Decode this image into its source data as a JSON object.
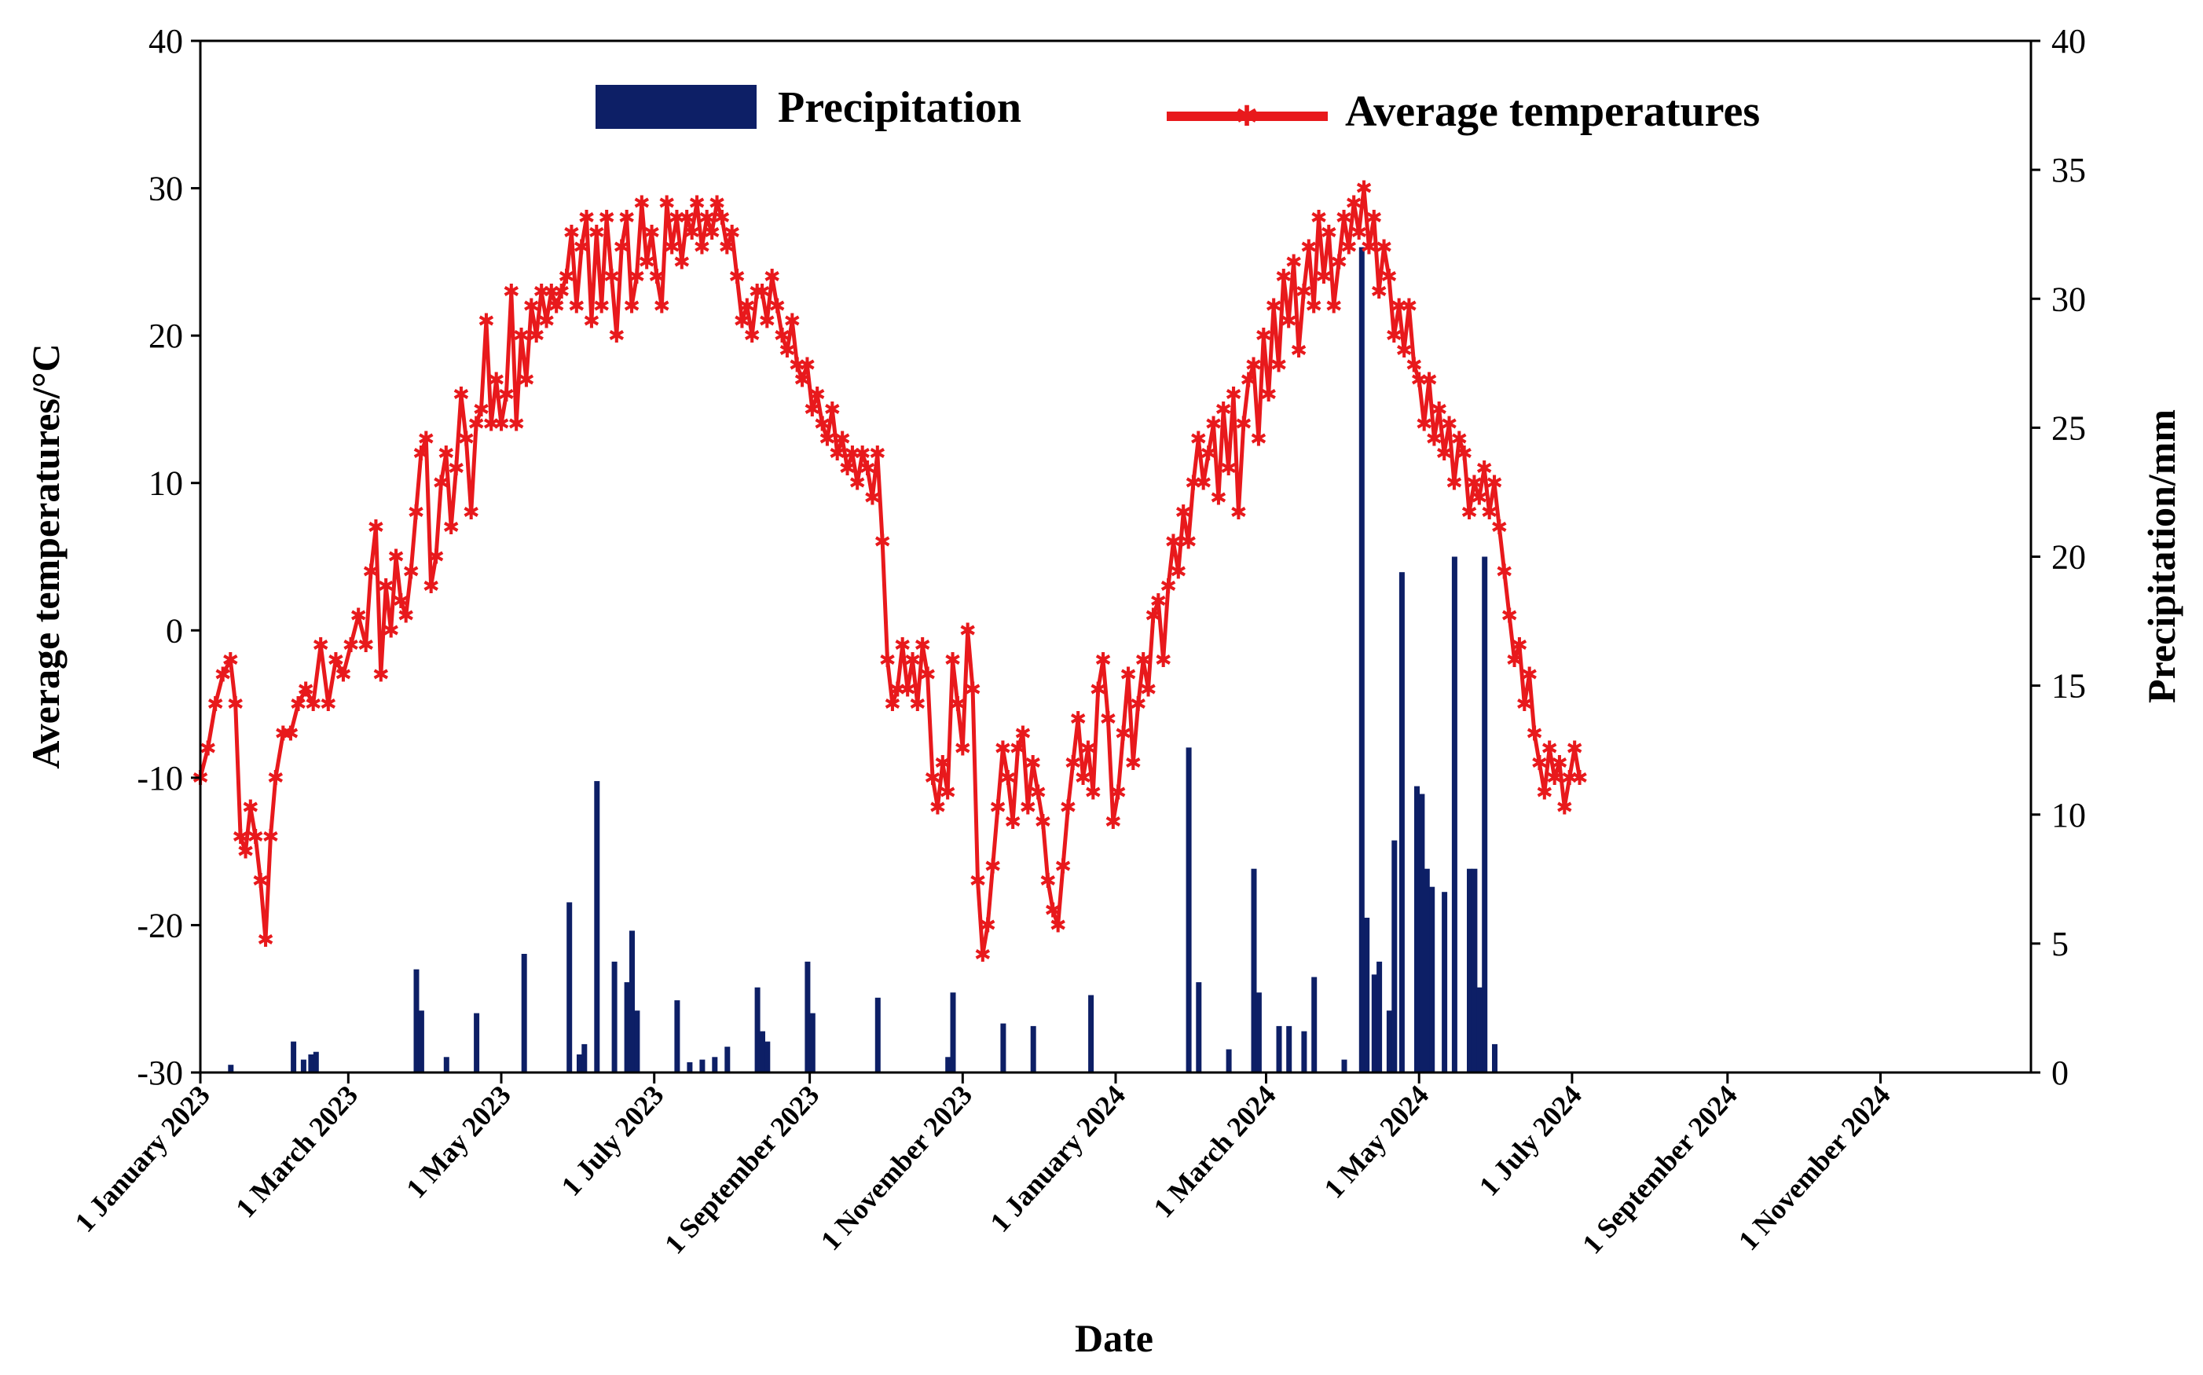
{
  "chart_data": {
    "type": "bar+line",
    "title": "",
    "xlabel": "Date",
    "ylabel_left": "Average temperatures/°C",
    "ylabel_right": "Precipitation/mm",
    "ylim_left": [
      -30,
      40
    ],
    "ylim_right": [
      0,
      40
    ],
    "yticks_left": [
      "-30",
      "-20",
      "-10",
      "0",
      "10",
      "20",
      "30",
      "40"
    ],
    "yticks_right": [
      "0",
      "5",
      "10",
      "15",
      "20",
      "25",
      "30",
      "35",
      "40"
    ],
    "x_range_days": [
      0,
      730
    ],
    "x_ticks": [
      {
        "day": 0,
        "label": "1 January 2023"
      },
      {
        "day": 59,
        "label": "1 March 2023"
      },
      {
        "day": 120,
        "label": "1 May 2023"
      },
      {
        "day": 181,
        "label": "1 July 2023"
      },
      {
        "day": 243,
        "label": "1 September 2023"
      },
      {
        "day": 304,
        "label": "1 November 2023"
      },
      {
        "day": 365,
        "label": "1 January 2024"
      },
      {
        "day": 425,
        "label": "1 March 2024"
      },
      {
        "day": 486,
        "label": "1 May 2024"
      },
      {
        "day": 547,
        "label": "1 July 2024"
      },
      {
        "day": 609,
        "label": "1 September 2024"
      },
      {
        "day": 670,
        "label": "1 November 2024"
      }
    ],
    "legend": {
      "position": "top-center",
      "precipitation": "Precipitation",
      "temperature": "Average temperatures"
    },
    "colors": {
      "precipitation": "#0d1f66",
      "temperature": "#e8191c"
    },
    "temperature_series": {
      "name": "Average temperatures",
      "points": [
        [
          0,
          -10
        ],
        [
          3,
          -8
        ],
        [
          6,
          -5
        ],
        [
          9,
          -3
        ],
        [
          12,
          -2
        ],
        [
          14,
          -5
        ],
        [
          16,
          -14
        ],
        [
          18,
          -15
        ],
        [
          20,
          -12
        ],
        [
          22,
          -14
        ],
        [
          24,
          -17
        ],
        [
          26,
          -21
        ],
        [
          28,
          -14
        ],
        [
          30,
          -10
        ],
        [
          33,
          -7
        ],
        [
          36,
          -7
        ],
        [
          39,
          -5
        ],
        [
          42,
          -4
        ],
        [
          45,
          -5
        ],
        [
          48,
          -1
        ],
        [
          51,
          -5
        ],
        [
          54,
          -2
        ],
        [
          57,
          -3
        ],
        [
          60,
          -1
        ],
        [
          63,
          1
        ],
        [
          66,
          -1
        ],
        [
          68,
          4
        ],
        [
          70,
          7
        ],
        [
          72,
          -3
        ],
        [
          74,
          3
        ],
        [
          76,
          0
        ],
        [
          78,
          5
        ],
        [
          80,
          2
        ],
        [
          82,
          1
        ],
        [
          84,
          4
        ],
        [
          86,
          8
        ],
        [
          88,
          12
        ],
        [
          90,
          13
        ],
        [
          92,
          3
        ],
        [
          94,
          5
        ],
        [
          96,
          10
        ],
        [
          98,
          12
        ],
        [
          100,
          7
        ],
        [
          102,
          11
        ],
        [
          104,
          16
        ],
        [
          106,
          13
        ],
        [
          108,
          8
        ],
        [
          110,
          14
        ],
        [
          112,
          15
        ],
        [
          114,
          21
        ],
        [
          116,
          14
        ],
        [
          118,
          17
        ],
        [
          120,
          14
        ],
        [
          122,
          16
        ],
        [
          124,
          23
        ],
        [
          126,
          14
        ],
        [
          128,
          20
        ],
        [
          130,
          17
        ],
        [
          132,
          22
        ],
        [
          134,
          20
        ],
        [
          136,
          23
        ],
        [
          138,
          21
        ],
        [
          140,
          23
        ],
        [
          142,
          22
        ],
        [
          144,
          23
        ],
        [
          146,
          24
        ],
        [
          148,
          27
        ],
        [
          150,
          22
        ],
        [
          152,
          26
        ],
        [
          154,
          28
        ],
        [
          156,
          21
        ],
        [
          158,
          27
        ],
        [
          160,
          22
        ],
        [
          162,
          28
        ],
        [
          164,
          24
        ],
        [
          166,
          20
        ],
        [
          168,
          26
        ],
        [
          170,
          28
        ],
        [
          172,
          22
        ],
        [
          174,
          24
        ],
        [
          176,
          29
        ],
        [
          178,
          25
        ],
        [
          180,
          27
        ],
        [
          182,
          24
        ],
        [
          184,
          22
        ],
        [
          186,
          29
        ],
        [
          188,
          26
        ],
        [
          190,
          28
        ],
        [
          192,
          25
        ],
        [
          194,
          28
        ],
        [
          196,
          27
        ],
        [
          198,
          29
        ],
        [
          200,
          26
        ],
        [
          202,
          28
        ],
        [
          204,
          27
        ],
        [
          206,
          29
        ],
        [
          208,
          28
        ],
        [
          210,
          26
        ],
        [
          212,
          27
        ],
        [
          214,
          24
        ],
        [
          216,
          21
        ],
        [
          218,
          22
        ],
        [
          220,
          20
        ],
        [
          222,
          23
        ],
        [
          224,
          23
        ],
        [
          226,
          21
        ],
        [
          228,
          24
        ],
        [
          230,
          22
        ],
        [
          232,
          20
        ],
        [
          234,
          19
        ],
        [
          236,
          21
        ],
        [
          238,
          18
        ],
        [
          240,
          17
        ],
        [
          242,
          18
        ],
        [
          244,
          15
        ],
        [
          246,
          16
        ],
        [
          248,
          14
        ],
        [
          250,
          13
        ],
        [
          252,
          15
        ],
        [
          254,
          12
        ],
        [
          256,
          13
        ],
        [
          258,
          11
        ],
        [
          260,
          12
        ],
        [
          262,
          10
        ],
        [
          264,
          12
        ],
        [
          266,
          11
        ],
        [
          268,
          9
        ],
        [
          270,
          12
        ],
        [
          272,
          6
        ],
        [
          274,
          -2
        ],
        [
          276,
          -5
        ],
        [
          278,
          -4
        ],
        [
          280,
          -1
        ],
        [
          282,
          -4
        ],
        [
          284,
          -2
        ],
        [
          286,
          -5
        ],
        [
          288,
          -1
        ],
        [
          290,
          -3
        ],
        [
          292,
          -10
        ],
        [
          294,
          -12
        ],
        [
          296,
          -9
        ],
        [
          298,
          -11
        ],
        [
          300,
          -2
        ],
        [
          302,
          -5
        ],
        [
          304,
          -8
        ],
        [
          306,
          0
        ],
        [
          308,
          -4
        ],
        [
          310,
          -17
        ],
        [
          312,
          -22
        ],
        [
          314,
          -20
        ],
        [
          316,
          -16
        ],
        [
          318,
          -12
        ],
        [
          320,
          -8
        ],
        [
          322,
          -10
        ],
        [
          324,
          -13
        ],
        [
          326,
          -8
        ],
        [
          328,
          -7
        ],
        [
          330,
          -12
        ],
        [
          332,
          -9
        ],
        [
          334,
          -11
        ],
        [
          336,
          -13
        ],
        [
          338,
          -17
        ],
        [
          340,
          -19
        ],
        [
          342,
          -20
        ],
        [
          344,
          -16
        ],
        [
          346,
          -12
        ],
        [
          348,
          -9
        ],
        [
          350,
          -6
        ],
        [
          352,
          -10
        ],
        [
          354,
          -8
        ],
        [
          356,
          -11
        ],
        [
          358,
          -4
        ],
        [
          360,
          -2
        ],
        [
          362,
          -6
        ],
        [
          364,
          -13
        ],
        [
          366,
          -11
        ],
        [
          368,
          -7
        ],
        [
          370,
          -3
        ],
        [
          372,
          -9
        ],
        [
          374,
          -5
        ],
        [
          376,
          -2
        ],
        [
          378,
          -4
        ],
        [
          380,
          1
        ],
        [
          382,
          2
        ],
        [
          384,
          -2
        ],
        [
          386,
          3
        ],
        [
          388,
          6
        ],
        [
          390,
          4
        ],
        [
          392,
          8
        ],
        [
          394,
          6
        ],
        [
          396,
          10
        ],
        [
          398,
          13
        ],
        [
          400,
          10
        ],
        [
          402,
          12
        ],
        [
          404,
          14
        ],
        [
          406,
          9
        ],
        [
          408,
          15
        ],
        [
          410,
          11
        ],
        [
          412,
          16
        ],
        [
          414,
          8
        ],
        [
          416,
          14
        ],
        [
          418,
          17
        ],
        [
          420,
          18
        ],
        [
          422,
          13
        ],
        [
          424,
          20
        ],
        [
          426,
          16
        ],
        [
          428,
          22
        ],
        [
          430,
          18
        ],
        [
          432,
          24
        ],
        [
          434,
          21
        ],
        [
          436,
          25
        ],
        [
          438,
          19
        ],
        [
          440,
          23
        ],
        [
          442,
          26
        ],
        [
          444,
          22
        ],
        [
          446,
          28
        ],
        [
          448,
          24
        ],
        [
          450,
          27
        ],
        [
          452,
          22
        ],
        [
          454,
          25
        ],
        [
          456,
          28
        ],
        [
          458,
          26
        ],
        [
          460,
          29
        ],
        [
          462,
          27
        ],
        [
          464,
          30
        ],
        [
          466,
          26
        ],
        [
          468,
          28
        ],
        [
          470,
          23
        ],
        [
          472,
          26
        ],
        [
          474,
          24
        ],
        [
          476,
          20
        ],
        [
          478,
          22
        ],
        [
          480,
          19
        ],
        [
          482,
          22
        ],
        [
          484,
          18
        ],
        [
          486,
          17
        ],
        [
          488,
          14
        ],
        [
          490,
          17
        ],
        [
          492,
          13
        ],
        [
          494,
          15
        ],
        [
          496,
          12
        ],
        [
          498,
          14
        ],
        [
          500,
          10
        ],
        [
          502,
          13
        ],
        [
          504,
          12
        ],
        [
          506,
          8
        ],
        [
          508,
          10
        ],
        [
          510,
          9
        ],
        [
          512,
          11
        ],
        [
          514,
          8
        ],
        [
          516,
          10
        ],
        [
          518,
          7
        ],
        [
          520,
          4
        ],
        [
          522,
          1
        ],
        [
          524,
          -2
        ],
        [
          526,
          -1
        ],
        [
          528,
          -5
        ],
        [
          530,
          -3
        ],
        [
          532,
          -7
        ],
        [
          534,
          -9
        ],
        [
          536,
          -11
        ],
        [
          538,
          -8
        ],
        [
          540,
          -10
        ],
        [
          542,
          -9
        ],
        [
          544,
          -12
        ],
        [
          546,
          -10
        ],
        [
          548,
          -8
        ],
        [
          550,
          -10
        ]
      ]
    },
    "precipitation_series": {
      "name": "Precipitation",
      "points": [
        [
          12,
          0.3
        ],
        [
          37,
          1.2
        ],
        [
          41,
          0.5
        ],
        [
          44,
          0.7
        ],
        [
          46,
          0.8
        ],
        [
          86,
          4
        ],
        [
          88,
          2.4
        ],
        [
          98,
          0.6
        ],
        [
          110,
          2.3
        ],
        [
          129,
          4.6
        ],
        [
          147,
          6.6
        ],
        [
          151,
          0.7
        ],
        [
          153,
          1.1
        ],
        [
          158,
          11.3
        ],
        [
          165,
          4.3
        ],
        [
          170,
          3.5
        ],
        [
          172,
          5.5
        ],
        [
          174,
          2.4
        ],
        [
          190,
          2.8
        ],
        [
          195,
          0.4
        ],
        [
          200,
          0.5
        ],
        [
          205,
          0.6
        ],
        [
          210,
          1.0
        ],
        [
          222,
          3.3
        ],
        [
          224,
          1.6
        ],
        [
          226,
          1.2
        ],
        [
          242,
          4.3
        ],
        [
          244,
          2.3
        ],
        [
          270,
          2.9
        ],
        [
          298,
          0.6
        ],
        [
          300,
          3.1
        ],
        [
          320,
          1.9
        ],
        [
          332,
          1.8
        ],
        [
          355,
          3.0
        ],
        [
          394,
          12.6
        ],
        [
          398,
          3.5
        ],
        [
          410,
          0.9
        ],
        [
          420,
          7.9
        ],
        [
          422,
          3.1
        ],
        [
          430,
          1.8
        ],
        [
          434,
          1.8
        ],
        [
          440,
          1.6
        ],
        [
          444,
          3.7
        ],
        [
          456,
          0.5
        ],
        [
          463,
          32
        ],
        [
          465,
          6.0
        ],
        [
          468,
          3.8
        ],
        [
          470,
          4.3
        ],
        [
          474,
          2.4
        ],
        [
          476,
          9.0
        ],
        [
          479,
          19.4
        ],
        [
          485,
          11.1
        ],
        [
          487,
          10.8
        ],
        [
          489,
          7.9
        ],
        [
          491,
          7.2
        ],
        [
          496,
          7.0
        ],
        [
          500,
          20.0
        ],
        [
          506,
          7.9
        ],
        [
          508,
          7.9
        ],
        [
          510,
          3.3
        ],
        [
          512,
          20.0
        ],
        [
          516,
          1.1
        ]
      ]
    }
  }
}
